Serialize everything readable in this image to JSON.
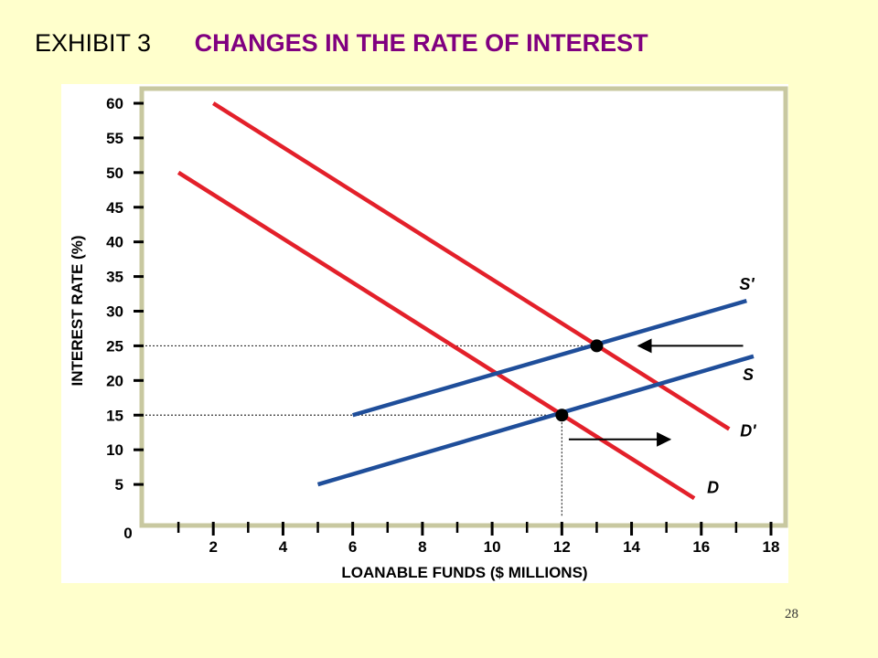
{
  "slide": {
    "exhibit_label": "EXHIBIT 3",
    "heading": "CHANGES IN THE RATE OF INTEREST",
    "slide_number": "28"
  },
  "colors": {
    "background": "#FFFFCC",
    "heading": "#800080",
    "demand": "#E3202A",
    "supply": "#1F4E9A",
    "plot_frame": "#C8C8A0"
  },
  "chart_data": {
    "type": "line",
    "title": "CHANGES IN THE RATE OF INTEREST",
    "xlabel": "LOANABLE FUNDS ($ MILLIONS)",
    "ylabel": "INTEREST RATE (%)",
    "xlim": [
      0,
      18
    ],
    "ylim": [
      0,
      60
    ],
    "x_ticks": [
      2,
      4,
      6,
      8,
      10,
      12,
      14,
      16,
      18
    ],
    "y_ticks": [
      5,
      10,
      15,
      20,
      25,
      30,
      35,
      40,
      45,
      50,
      55,
      60
    ],
    "x_tick_labels": [
      "2",
      "4",
      "6",
      "8",
      "10",
      "12",
      "14",
      "16",
      "18"
    ],
    "y_tick_labels": [
      "5",
      "10",
      "15",
      "20",
      "25",
      "30",
      "35",
      "40",
      "45",
      "50",
      "55",
      "60"
    ],
    "origin_label": "0",
    "grid": false,
    "series": [
      {
        "name": "D",
        "color": "#E3202A",
        "x": [
          1,
          15.8
        ],
        "y": [
          50,
          3
        ]
      },
      {
        "name": "D'",
        "color": "#E3202A",
        "x": [
          2,
          16.8
        ],
        "y": [
          60,
          13
        ]
      },
      {
        "name": "S",
        "color": "#1F4E9A",
        "x": [
          5,
          17.5
        ],
        "y": [
          5,
          23.5
        ]
      },
      {
        "name": "S'",
        "color": "#1F4E9A",
        "x": [
          6,
          17.3
        ],
        "y": [
          15,
          31.5
        ]
      }
    ],
    "equilibria": [
      {
        "x": 12,
        "y": 15
      },
      {
        "x": 13,
        "y": 25
      }
    ],
    "annotations": [
      {
        "type": "arrow",
        "direction": "left",
        "x_from": 17.2,
        "x_to": 14.2,
        "y": 25
      },
      {
        "type": "arrow",
        "direction": "right",
        "x_from": 12.2,
        "x_to": 15.1,
        "y": 11.5
      }
    ]
  }
}
